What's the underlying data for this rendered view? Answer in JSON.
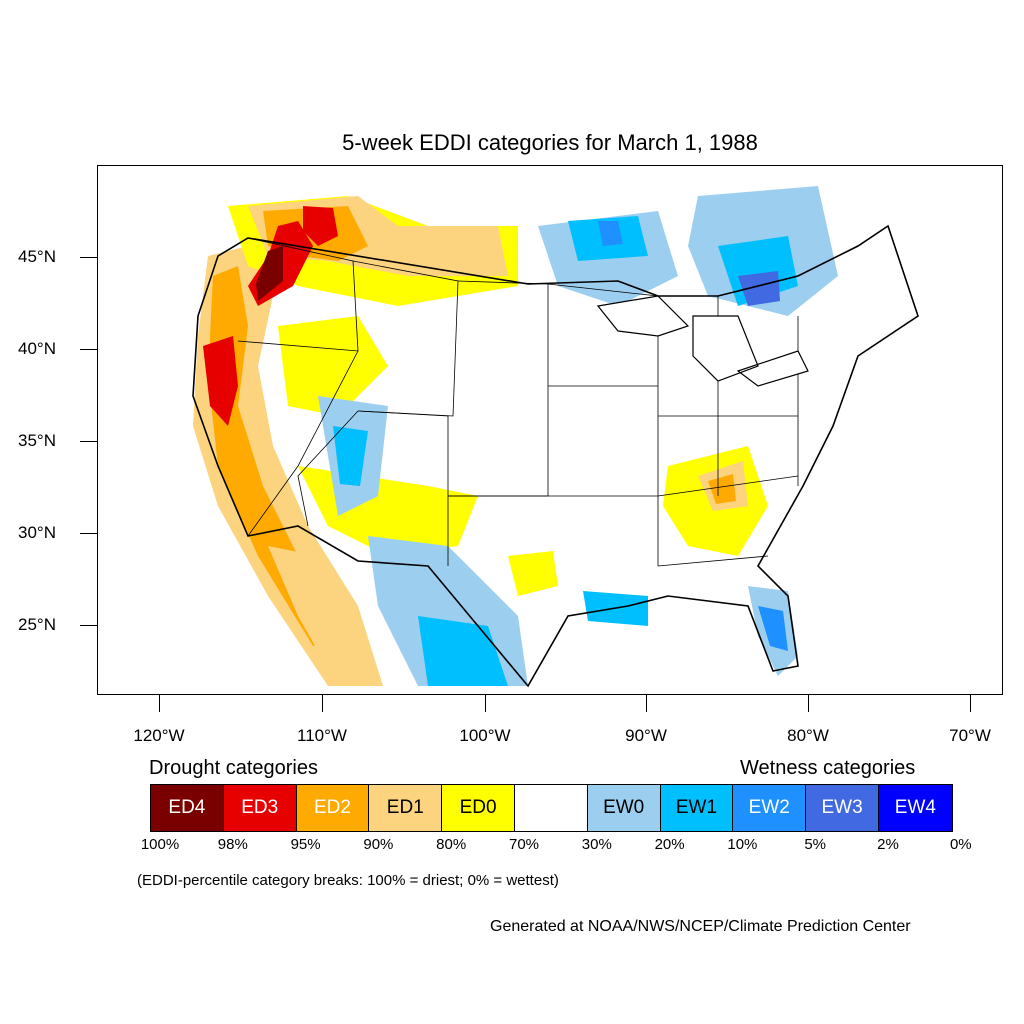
{
  "title": "5-week EDDI categories for March 1, 1988",
  "lat_labels": [
    "45°N",
    "40°N",
    "35°N",
    "30°N",
    "25°N"
  ],
  "lon_labels": [
    "120°W",
    "110°W",
    "100°W",
    "90°W",
    "80°W",
    "70°W"
  ],
  "drought_title": "Drought categories",
  "wetness_title": "Wetness categories",
  "legend": [
    {
      "label": "ED4",
      "color": "#7a0000",
      "text_color": "#ffffff"
    },
    {
      "label": "ED3",
      "color": "#e60000",
      "text_color": "#ffffff"
    },
    {
      "label": "ED2",
      "color": "#ffaa00",
      "text_color": "#ffffff"
    },
    {
      "label": "ED1",
      "color": "#fcd37f",
      "text_color": "#000000"
    },
    {
      "label": "ED0",
      "color": "#ffff00",
      "text_color": "#000000"
    },
    {
      "label": "",
      "color": "#ffffff",
      "text_color": "#000000"
    },
    {
      "label": "EW0",
      "color": "#9ccfef",
      "text_color": "#000000"
    },
    {
      "label": "EW1",
      "color": "#00bfff",
      "text_color": "#000000"
    },
    {
      "label": "EW2",
      "color": "#1e90ff",
      "text_color": "#ffffff"
    },
    {
      "label": "EW3",
      "color": "#4169e1",
      "text_color": "#ffffff"
    },
    {
      "label": "EW4",
      "color": "#0000ff",
      "text_color": "#ffffff"
    }
  ],
  "percent_breaks": [
    "100%",
    "98%",
    "95%",
    "90%",
    "80%",
    "70%",
    "30%",
    "20%",
    "10%",
    "5%",
    "2%",
    "0%"
  ],
  "note": "(EDDI-percentile category breaks: 100% = driest; 0% = wettest)",
  "credit": "Generated at NOAA/NWS/NCEP/Climate Prediction Center"
}
